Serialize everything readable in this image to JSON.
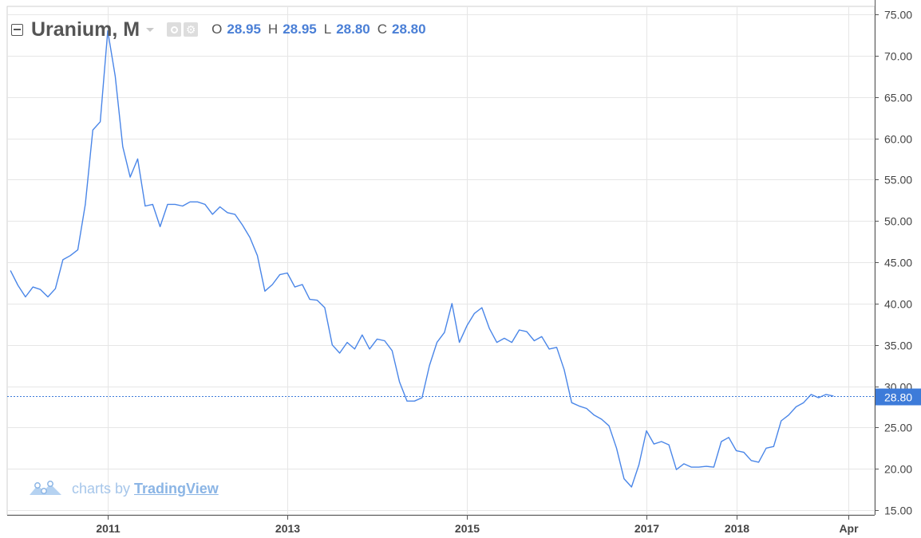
{
  "legend": {
    "symbol": "Uranium, M",
    "open_label": "O",
    "open": "28.95",
    "high_label": "H",
    "high": "28.95",
    "low_label": "L",
    "low": "28.80",
    "close_label": "C",
    "close": "28.80"
  },
  "watermark": {
    "prefix": "charts by",
    "brand": "TradingView"
  },
  "colors": {
    "line": "#4a86e8",
    "grid": "#e6e6e6",
    "axis": "#555555",
    "price_label_bg": "#3d7bd9",
    "ohlc_value": "#4a7fd6"
  },
  "chart_data": {
    "type": "line",
    "title": "Uranium, M",
    "ylim": [
      15,
      75
    ],
    "y_ticks": [
      "15.00",
      "20.00",
      "25.00",
      "30.00",
      "35.00",
      "40.00",
      "45.00",
      "50.00",
      "55.00",
      "60.00",
      "65.00",
      "70.00",
      "75.00"
    ],
    "x_ticks": [
      {
        "label": "2011",
        "date": "2011-01"
      },
      {
        "label": "2013",
        "date": "2013-01"
      },
      {
        "label": "2015",
        "date": "2015-01"
      },
      {
        "label": "2017",
        "date": "2017-01"
      },
      {
        "label": "2018",
        "date": "2018-01"
      },
      {
        "label": "Apr",
        "date": "2019-04"
      }
    ],
    "last_price": "28.80",
    "grid": true,
    "series": [
      {
        "values": [
          {
            "x": "2009-12",
            "y": 44.0
          },
          {
            "x": "2010-01",
            "y": 42.2
          },
          {
            "x": "2010-02",
            "y": 40.8
          },
          {
            "x": "2010-03",
            "y": 42.0
          },
          {
            "x": "2010-04",
            "y": 41.7
          },
          {
            "x": "2010-05",
            "y": 40.8
          },
          {
            "x": "2010-06",
            "y": 41.8
          },
          {
            "x": "2010-07",
            "y": 45.3
          },
          {
            "x": "2010-08",
            "y": 45.8
          },
          {
            "x": "2010-09",
            "y": 46.5
          },
          {
            "x": "2010-10",
            "y": 52.0
          },
          {
            "x": "2010-11",
            "y": 61.0
          },
          {
            "x": "2010-12",
            "y": 62.0
          },
          {
            "x": "2011-01",
            "y": 73.0
          },
          {
            "x": "2011-02",
            "y": 67.5
          },
          {
            "x": "2011-03",
            "y": 59.0
          },
          {
            "x": "2011-04",
            "y": 55.3
          },
          {
            "x": "2011-05",
            "y": 57.5
          },
          {
            "x": "2011-06",
            "y": 51.8
          },
          {
            "x": "2011-07",
            "y": 52.0
          },
          {
            "x": "2011-08",
            "y": 49.3
          },
          {
            "x": "2011-09",
            "y": 52.0
          },
          {
            "x": "2011-10",
            "y": 52.0
          },
          {
            "x": "2011-11",
            "y": 51.8
          },
          {
            "x": "2011-12",
            "y": 52.3
          },
          {
            "x": "2012-01",
            "y": 52.3
          },
          {
            "x": "2012-02",
            "y": 52.0
          },
          {
            "x": "2012-03",
            "y": 50.8
          },
          {
            "x": "2012-04",
            "y": 51.7
          },
          {
            "x": "2012-05",
            "y": 51.0
          },
          {
            "x": "2012-06",
            "y": 50.8
          },
          {
            "x": "2012-07",
            "y": 49.5
          },
          {
            "x": "2012-08",
            "y": 48.0
          },
          {
            "x": "2012-09",
            "y": 45.8
          },
          {
            "x": "2012-10",
            "y": 41.5
          },
          {
            "x": "2012-11",
            "y": 42.3
          },
          {
            "x": "2012-12",
            "y": 43.5
          },
          {
            "x": "2013-01",
            "y": 43.7
          },
          {
            "x": "2013-02",
            "y": 42.0
          },
          {
            "x": "2013-03",
            "y": 42.3
          },
          {
            "x": "2013-04",
            "y": 40.5
          },
          {
            "x": "2013-05",
            "y": 40.4
          },
          {
            "x": "2013-06",
            "y": 39.5
          },
          {
            "x": "2013-07",
            "y": 35.0
          },
          {
            "x": "2013-08",
            "y": 34.0
          },
          {
            "x": "2013-09",
            "y": 35.3
          },
          {
            "x": "2013-10",
            "y": 34.5
          },
          {
            "x": "2013-11",
            "y": 36.2
          },
          {
            "x": "2013-12",
            "y": 34.5
          },
          {
            "x": "2014-01",
            "y": 35.7
          },
          {
            "x": "2014-02",
            "y": 35.5
          },
          {
            "x": "2014-03",
            "y": 34.3
          },
          {
            "x": "2014-04",
            "y": 30.5
          },
          {
            "x": "2014-05",
            "y": 28.2
          },
          {
            "x": "2014-06",
            "y": 28.2
          },
          {
            "x": "2014-07",
            "y": 28.6
          },
          {
            "x": "2014-08",
            "y": 32.5
          },
          {
            "x": "2014-09",
            "y": 35.3
          },
          {
            "x": "2014-10",
            "y": 36.5
          },
          {
            "x": "2014-11",
            "y": 40.0
          },
          {
            "x": "2014-12",
            "y": 35.3
          },
          {
            "x": "2015-01",
            "y": 37.3
          },
          {
            "x": "2015-02",
            "y": 38.8
          },
          {
            "x": "2015-03",
            "y": 39.5
          },
          {
            "x": "2015-04",
            "y": 37.0
          },
          {
            "x": "2015-05",
            "y": 35.3
          },
          {
            "x": "2015-06",
            "y": 35.8
          },
          {
            "x": "2015-07",
            "y": 35.3
          },
          {
            "x": "2015-08",
            "y": 36.8
          },
          {
            "x": "2015-09",
            "y": 36.6
          },
          {
            "x": "2015-10",
            "y": 35.5
          },
          {
            "x": "2015-11",
            "y": 36.0
          },
          {
            "x": "2015-12",
            "y": 34.5
          },
          {
            "x": "2016-01",
            "y": 34.7
          },
          {
            "x": "2016-02",
            "y": 32.0
          },
          {
            "x": "2016-03",
            "y": 28.0
          },
          {
            "x": "2016-04",
            "y": 27.6
          },
          {
            "x": "2016-05",
            "y": 27.3
          },
          {
            "x": "2016-06",
            "y": 26.5
          },
          {
            "x": "2016-07",
            "y": 26.0
          },
          {
            "x": "2016-08",
            "y": 25.2
          },
          {
            "x": "2016-09",
            "y": 22.5
          },
          {
            "x": "2016-10",
            "y": 18.8
          },
          {
            "x": "2016-11",
            "y": 17.8
          },
          {
            "x": "2016-12",
            "y": 20.5
          },
          {
            "x": "2017-01",
            "y": 24.6
          },
          {
            "x": "2017-02",
            "y": 23.0
          },
          {
            "x": "2017-03",
            "y": 23.3
          },
          {
            "x": "2017-04",
            "y": 22.9
          },
          {
            "x": "2017-05",
            "y": 19.9
          },
          {
            "x": "2017-06",
            "y": 20.6
          },
          {
            "x": "2017-07",
            "y": 20.2
          },
          {
            "x": "2017-08",
            "y": 20.2
          },
          {
            "x": "2017-09",
            "y": 20.3
          },
          {
            "x": "2017-10",
            "y": 20.2
          },
          {
            "x": "2017-11",
            "y": 23.3
          },
          {
            "x": "2017-12",
            "y": 23.8
          },
          {
            "x": "2018-01",
            "y": 22.2
          },
          {
            "x": "2018-02",
            "y": 22.0
          },
          {
            "x": "2018-03",
            "y": 21.0
          },
          {
            "x": "2018-04",
            "y": 20.8
          },
          {
            "x": "2018-05",
            "y": 22.5
          },
          {
            "x": "2018-06",
            "y": 22.7
          },
          {
            "x": "2018-07",
            "y": 25.8
          },
          {
            "x": "2018-08",
            "y": 26.5
          },
          {
            "x": "2018-09",
            "y": 27.5
          },
          {
            "x": "2018-10",
            "y": 28.0
          },
          {
            "x": "2018-11",
            "y": 29.0
          },
          {
            "x": "2018-12",
            "y": 28.6
          },
          {
            "x": "2019-01",
            "y": 29.0
          },
          {
            "x": "2019-02",
            "y": 28.8
          }
        ]
      }
    ]
  }
}
